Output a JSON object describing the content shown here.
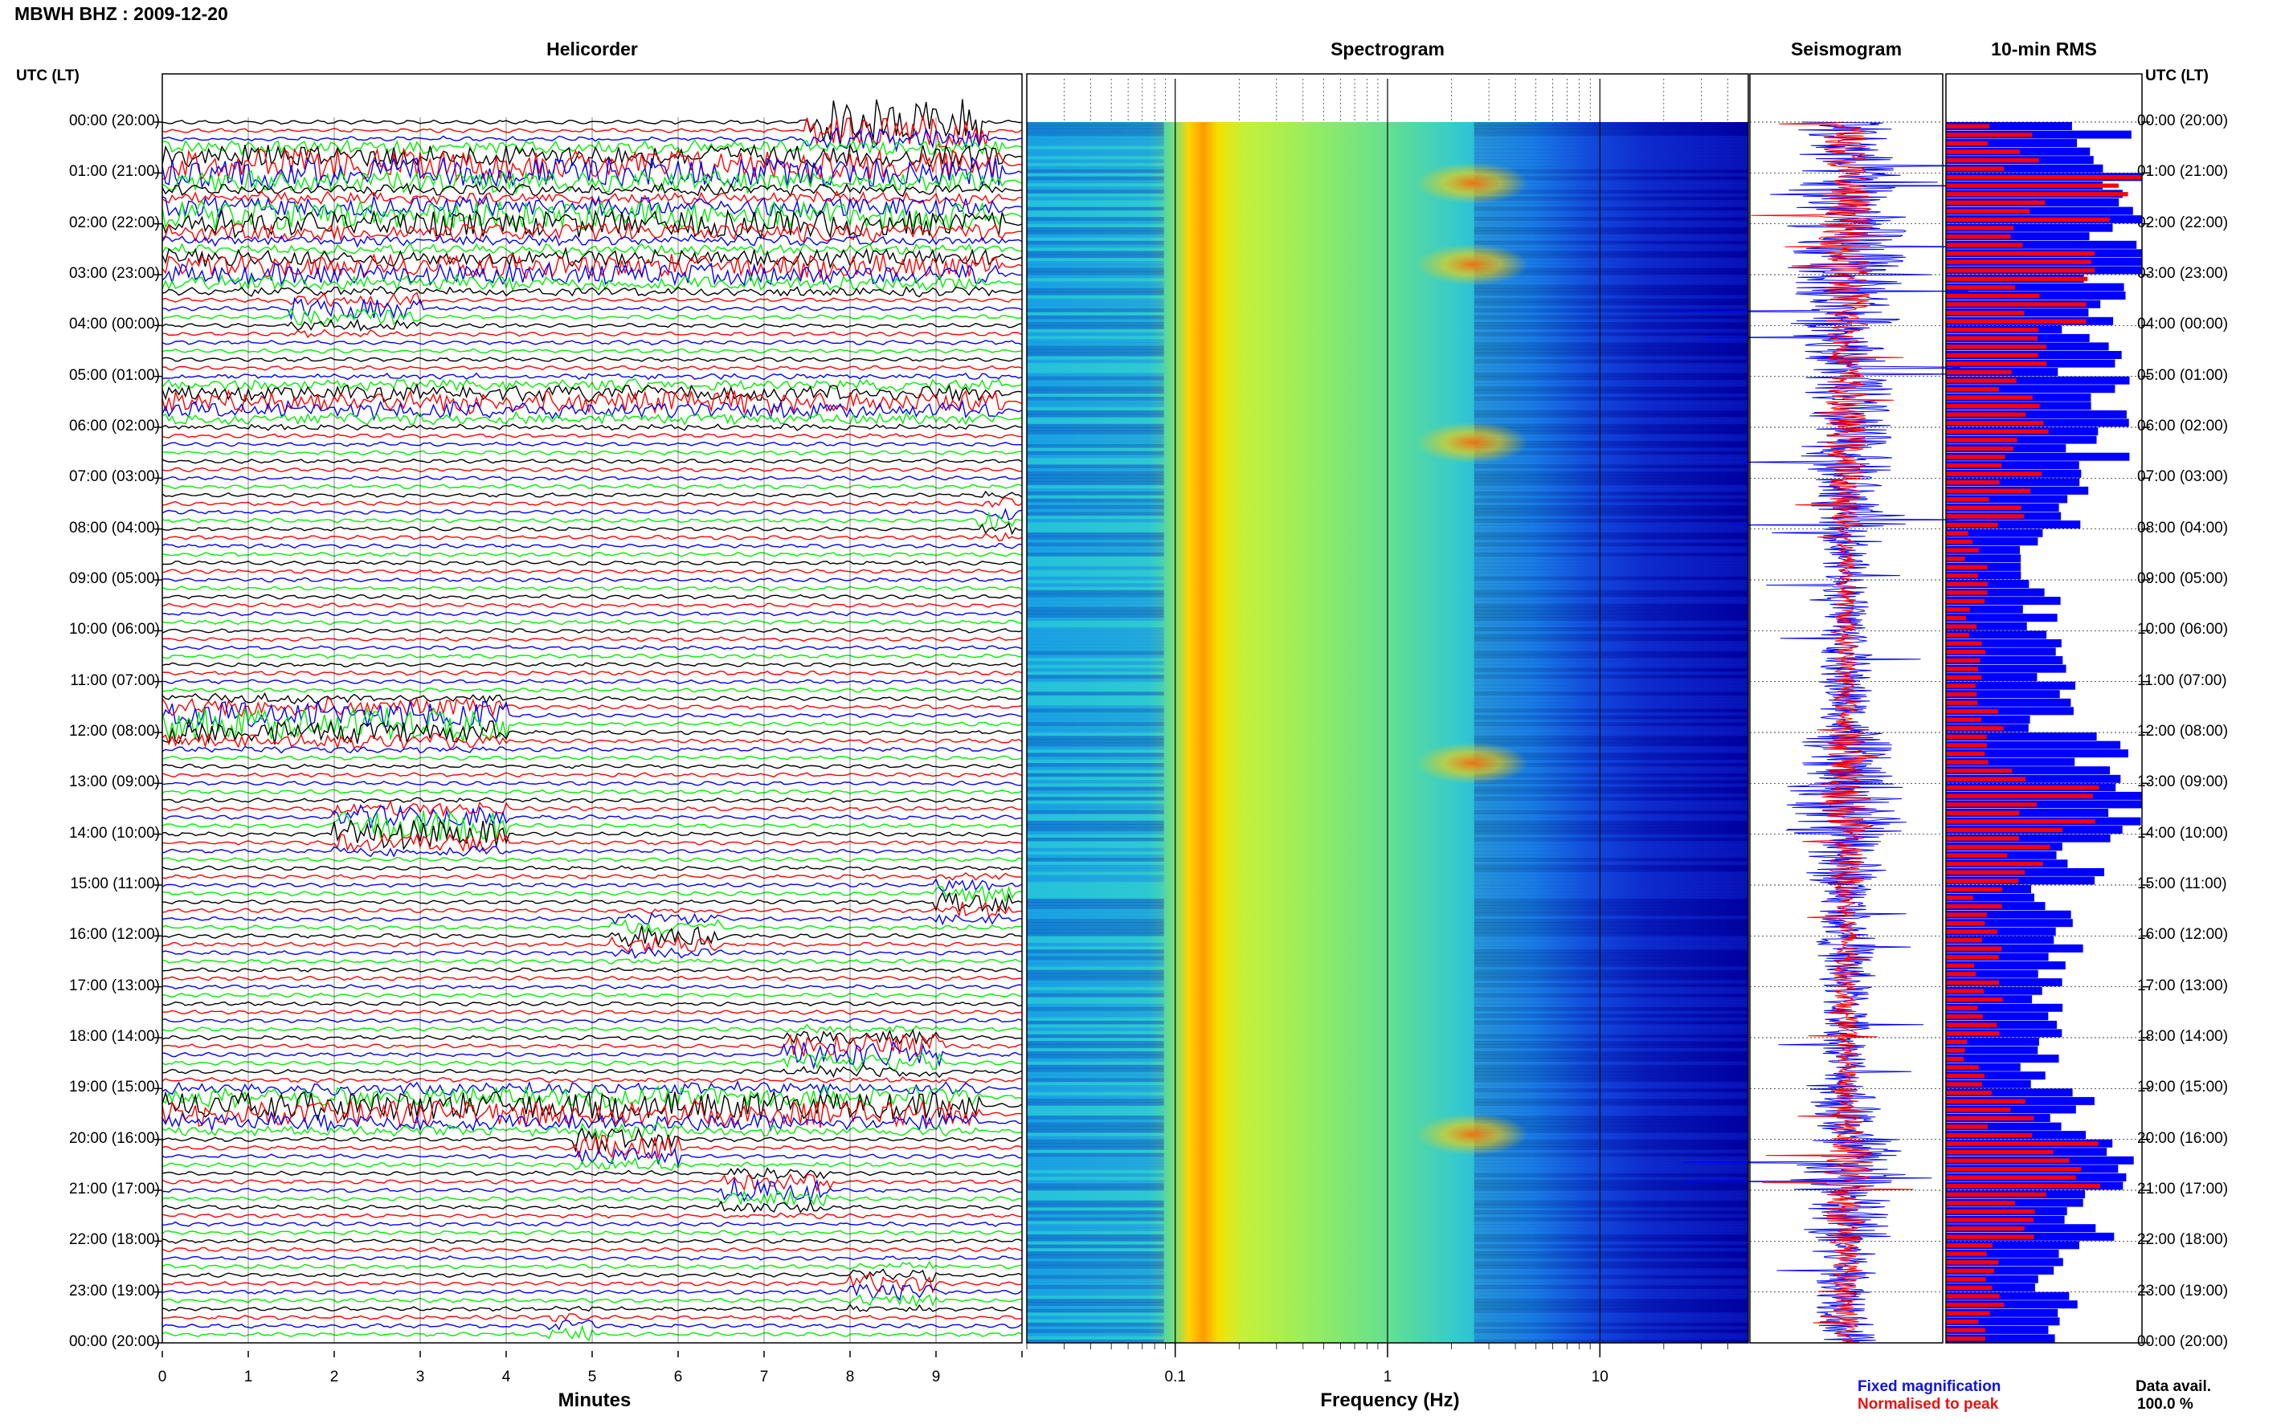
{
  "header": {
    "station_title": "MBWH BHZ : 2009-12-20",
    "utc_header_left": "UTC (LT)",
    "utc_header_right": "UTC (LT)"
  },
  "panels": {
    "helicorder": "Helicorder",
    "spectrogram": "Spectrogram",
    "seismogram": "Seismogram",
    "rms": "10-min RMS"
  },
  "axes": {
    "minutes_label": "Minutes",
    "frequency_label": "Frequency (Hz)"
  },
  "legend": {
    "fixed": "Fixed magnification",
    "normalised": "Normalised to peak"
  },
  "availability": {
    "label": "Data avail.",
    "value": "100.0 %"
  },
  "colors": {
    "trace_cycle": [
      "#000000",
      "#ff0000",
      "#0000ff",
      "#00ee00"
    ],
    "seis_fixed": "#0000ff",
    "seis_norm": "#ff0000",
    "rms_fixed": "#0000ff",
    "rms_norm": "#ff0000"
  },
  "chart_data": [
    {
      "type": "line",
      "title": "Helicorder",
      "xlabel": "Minutes",
      "ylabel": "UTC (LT)",
      "x_ticks": [
        "0",
        "1",
        "2",
        "3",
        "4",
        "5",
        "6",
        "7",
        "8",
        "9"
      ],
      "xlim": [
        0,
        10
      ],
      "y_ticks": [
        "00:00 (20:00)",
        "01:00 (21:00)",
        "02:00 (22:00)",
        "03:00 (23:00)",
        "04:00 (00:00)",
        "05:00 (01:00)",
        "06:00 (02:00)",
        "07:00 (03:00)",
        "08:00 (04:00)",
        "09:00 (05:00)",
        "10:00 (06:00)",
        "11:00 (07:00)",
        "12:00 (08:00)",
        "13:00 (09:00)",
        "14:00 (10:00)",
        "15:00 (11:00)",
        "16:00 (12:00)",
        "17:00 (13:00)",
        "18:00 (14:00)",
        "19:00 (15:00)",
        "20:00 (16:00)",
        "21:00 (17:00)",
        "22:00 (18:00)",
        "23:00 (19:00)",
        "00:00 (20:00)"
      ],
      "traces_per_hour": 6,
      "trace_color_cycle": [
        "black",
        "red",
        "blue",
        "green"
      ],
      "events": [
        {
          "hour": 0.0,
          "minute_start": 7.5,
          "minute_end": 9.6,
          "amplitude": 3.5
        },
        {
          "hour": 0.9,
          "minute_start": 0.0,
          "minute_end": 9.8,
          "amplitude": 2.5
        },
        {
          "hour": 1.9,
          "minute_start": 0.0,
          "minute_end": 9.8,
          "amplitude": 2.2
        },
        {
          "hour": 2.9,
          "minute_start": 0.0,
          "minute_end": 9.8,
          "amplitude": 1.8
        },
        {
          "hour": 3.7,
          "minute_start": 1.5,
          "minute_end": 3.0,
          "amplitude": 1.5
        },
        {
          "hour": 5.5,
          "minute_start": 0.0,
          "minute_end": 9.8,
          "amplitude": 1.5
        },
        {
          "hour": 7.8,
          "minute_start": 9.5,
          "minute_end": 9.9,
          "amplitude": 1.5
        },
        {
          "hour": 11.8,
          "minute_start": 0.0,
          "minute_end": 4.0,
          "amplitude": 2.5
        },
        {
          "hour": 13.9,
          "minute_start": 2.0,
          "minute_end": 4.0,
          "amplitude": 2.5
        },
        {
          "hour": 15.3,
          "minute_start": 9.0,
          "minute_end": 9.9,
          "amplitude": 1.5
        },
        {
          "hour": 16.0,
          "minute_start": 5.2,
          "minute_end": 6.5,
          "amplitude": 1.5
        },
        {
          "hour": 18.3,
          "minute_start": 7.2,
          "minute_end": 9.1,
          "amplitude": 2.0
        },
        {
          "hour": 19.4,
          "minute_start": 0.0,
          "minute_end": 9.5,
          "amplitude": 2.2
        },
        {
          "hour": 20.1,
          "minute_start": 4.8,
          "minute_end": 6.0,
          "amplitude": 2.0
        },
        {
          "hour": 21.0,
          "minute_start": 6.5,
          "minute_end": 7.8,
          "amplitude": 1.6
        },
        {
          "hour": 22.9,
          "minute_start": 8.0,
          "minute_end": 9.0,
          "amplitude": 1.4
        },
        {
          "hour": 23.8,
          "minute_start": 4.5,
          "minute_end": 5.0,
          "amplitude": 1.0
        }
      ]
    },
    {
      "type": "heatmap",
      "title": "Spectrogram",
      "xlabel": "Frequency (Hz)",
      "x_scale": "log",
      "x_ticks": [
        "0.1",
        "1",
        "10"
      ],
      "xlim": [
        0.02,
        50
      ],
      "colormap": "jet",
      "features": [
        {
          "description": "peak band",
          "frequency_hz": 0.17
        },
        {
          "description": "energy bursts",
          "frequency_hz": 2.5,
          "hours": [
            1.2,
            2.8,
            6.3,
            12.6,
            19.9
          ]
        }
      ]
    },
    {
      "type": "line",
      "title": "Seismogram",
      "series": [
        {
          "name": "Fixed magnification",
          "color": "blue"
        },
        {
          "name": "Normalised to peak",
          "color": "red"
        }
      ],
      "y_range_hours": [
        0,
        24
      ]
    },
    {
      "type": "bar",
      "title": "10-min RMS",
      "orientation": "horizontal",
      "bins": 144,
      "series": [
        {
          "name": "Fixed magnification",
          "color": "blue",
          "hourly_levels": [
            0.85,
            0.95,
            0.95,
            0.9,
            0.75,
            0.8,
            0.8,
            0.7,
            0.5,
            0.5,
            0.55,
            0.55,
            0.8,
            0.95,
            0.75,
            0.55,
            0.6,
            0.55,
            0.5,
            0.7,
            0.95,
            0.8,
            0.6,
            0.6
          ]
        },
        {
          "name": "Normalised to peak",
          "color": "red",
          "hourly_levels": [
            0.35,
            0.7,
            0.55,
            0.5,
            0.35,
            0.4,
            0.35,
            0.3,
            0.15,
            0.15,
            0.15,
            0.2,
            0.3,
            0.55,
            0.4,
            0.2,
            0.2,
            0.2,
            0.15,
            0.3,
            0.55,
            0.35,
            0.2,
            0.2
          ]
        }
      ],
      "data_available_percent": 100.0
    }
  ]
}
